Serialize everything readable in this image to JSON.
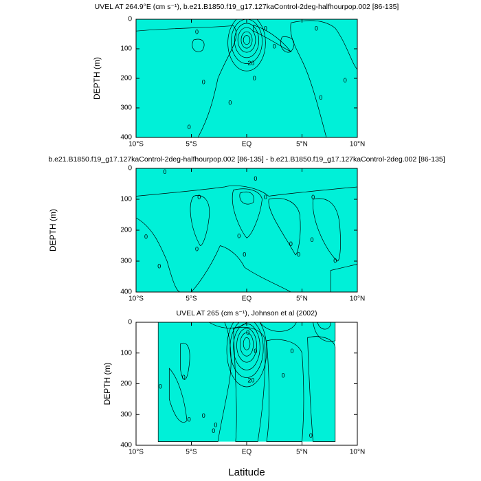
{
  "chart_data": [
    {
      "type": "contour",
      "title": "UVEL AT 264.9°E (cm s⁻¹), b.e21.B1850.f19_g17.127kaControl-2deg-halfhourpop.002 [86-135]",
      "y_label": "DEPTH (m)",
      "xlim": [
        -10,
        10
      ],
      "xticks": [
        {
          "value": -10,
          "label": "10°S"
        },
        {
          "value": -5,
          "label": "5°S"
        },
        {
          "value": 0,
          "label": "EQ"
        },
        {
          "value": 5,
          "label": "5°N"
        },
        {
          "value": 10,
          "label": "10°N"
        }
      ],
      "ylim": [
        400,
        0
      ],
      "yticks": [
        0,
        100,
        200,
        300,
        400
      ],
      "contour_labels": [
        0,
        0,
        0,
        0,
        0,
        0,
        0,
        0,
        0,
        0,
        20
      ]
    },
    {
      "type": "contour",
      "title": "b.e21.B1850.f19_g17.127kaControl-2deg-halfhourpop.002 [86-135] - b.e21.B1850.f19_g17.127kaControl-2deg.002 [86-135]",
      "y_label": "DEPTH (m)",
      "xlim": [
        -10,
        10
      ],
      "xticks": [
        {
          "value": -10,
          "label": "10°S"
        },
        {
          "value": -5,
          "label": "5°S"
        },
        {
          "value": 0,
          "label": "EQ"
        },
        {
          "value": 5,
          "label": "5°N"
        },
        {
          "value": 10,
          "label": "10°N"
        }
      ],
      "ylim": [
        400,
        0
      ],
      "yticks": [
        0,
        100,
        200,
        300,
        400
      ],
      "contour_labels": [
        0,
        0,
        0,
        0,
        0,
        0,
        0,
        0,
        0,
        0,
        0,
        0,
        0,
        0
      ]
    },
    {
      "type": "contour",
      "title": "UVEL AT 265 (cm s⁻¹), Johnson et al (2002)",
      "y_label": "DEPTH (m)",
      "x_label": "Latitude",
      "xlim": [
        -10,
        10
      ],
      "xticks": [
        {
          "value": -10,
          "label": "10°S"
        },
        {
          "value": -5,
          "label": "5°S"
        },
        {
          "value": 0,
          "label": "EQ"
        },
        {
          "value": 5,
          "label": "5°N"
        },
        {
          "value": 10,
          "label": "10°N"
        }
      ],
      "ylim": [
        400,
        0
      ],
      "yticks": [
        0,
        100,
        200,
        300,
        400
      ],
      "contour_labels": [
        0,
        0,
        0,
        0,
        0,
        0,
        0,
        0,
        0,
        0,
        0,
        20
      ]
    }
  ]
}
